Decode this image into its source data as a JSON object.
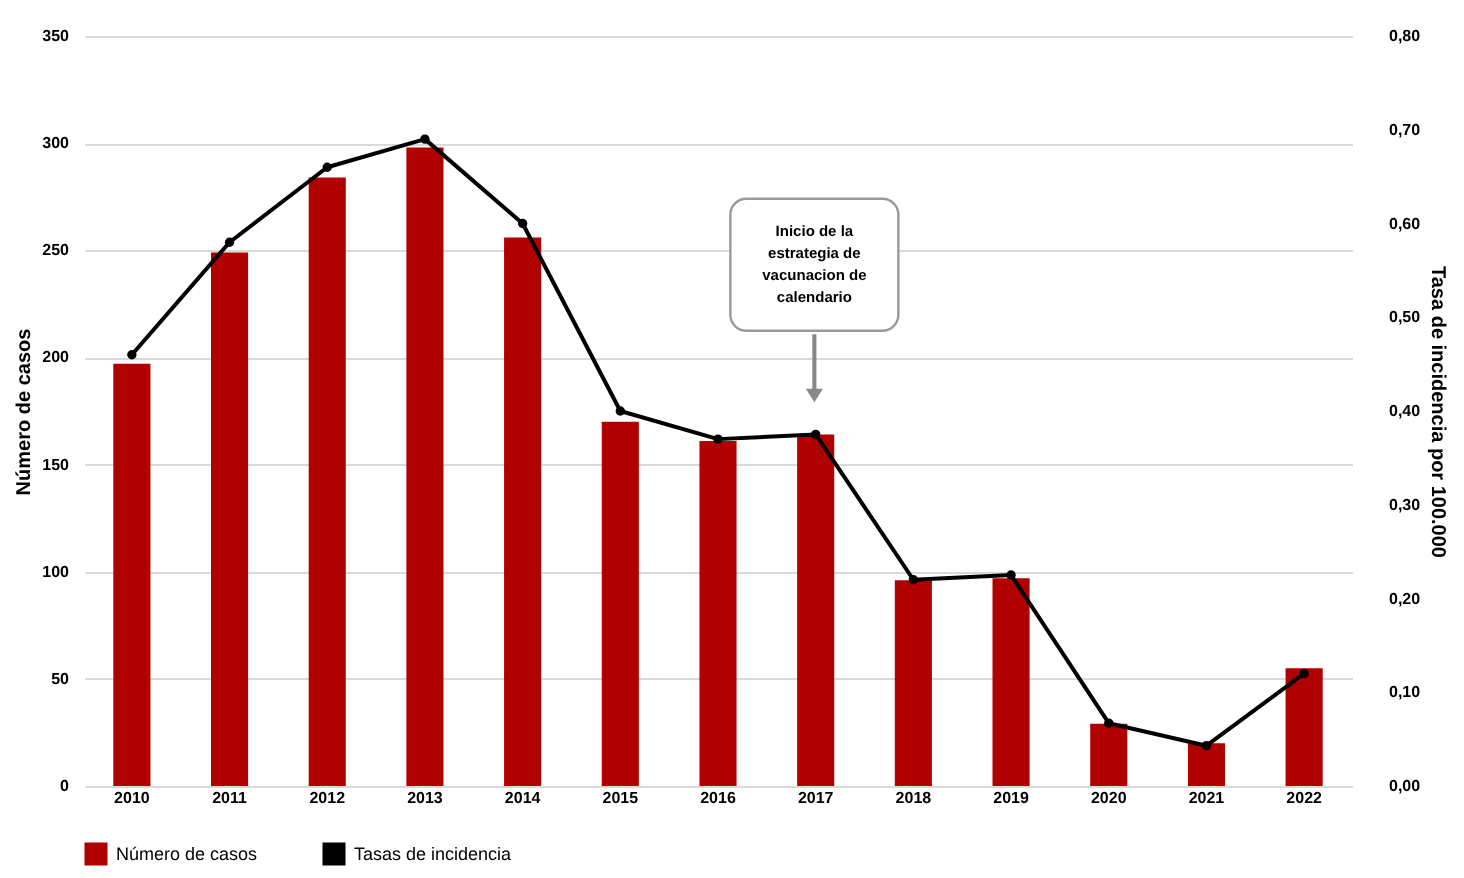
{
  "chart_data": {
    "type": "bar",
    "categories": [
      "2010",
      "2011",
      "2012",
      "2013",
      "2014",
      "2015",
      "2016",
      "2017",
      "2018",
      "2019",
      "2020",
      "2021",
      "2022"
    ],
    "ylabel": "Número de casos",
    "y2label": "Tasa de incidencia por 100.000",
    "ylim": [
      0,
      350
    ],
    "yticks": [
      0,
      50,
      100,
      150,
      200,
      250,
      300,
      350
    ],
    "y2lim": [
      0,
      0.8
    ],
    "y2ticks": [
      {
        "value": 0,
        "label": "0,00"
      },
      {
        "value": 0.1,
        "label": "0,10"
      },
      {
        "value": 0.2,
        "label": "0,20"
      },
      {
        "value": 0.3,
        "label": "0,30"
      },
      {
        "value": 0.4,
        "label": "0,40"
      },
      {
        "value": 0.5,
        "label": "0,50"
      },
      {
        "value": 0.6,
        "label": "0,60"
      },
      {
        "value": 0.7,
        "label": "0,70"
      },
      {
        "value": 0.8,
        "label": "0,80"
      }
    ],
    "series": [
      {
        "name": "Número de casos",
        "type": "bar",
        "color": "#b00000",
        "values": [
          197,
          249,
          284,
          298,
          256,
          170,
          161,
          164,
          96,
          97,
          29,
          20,
          55
        ]
      },
      {
        "name": "Tasas de incidencia",
        "type": "line",
        "axis": "y2",
        "color": "#000000",
        "marker": "circle",
        "values": [
          0.46,
          0.58,
          0.66,
          0.69,
          0.6,
          0.4,
          0.37,
          0.375,
          0.22,
          0.225,
          0.067,
          0.043,
          0.12
        ]
      }
    ],
    "annotations": [
      "Inicio de la estrategia de vacunacion de calendario"
    ],
    "grid": "y",
    "legend": "bottom"
  }
}
